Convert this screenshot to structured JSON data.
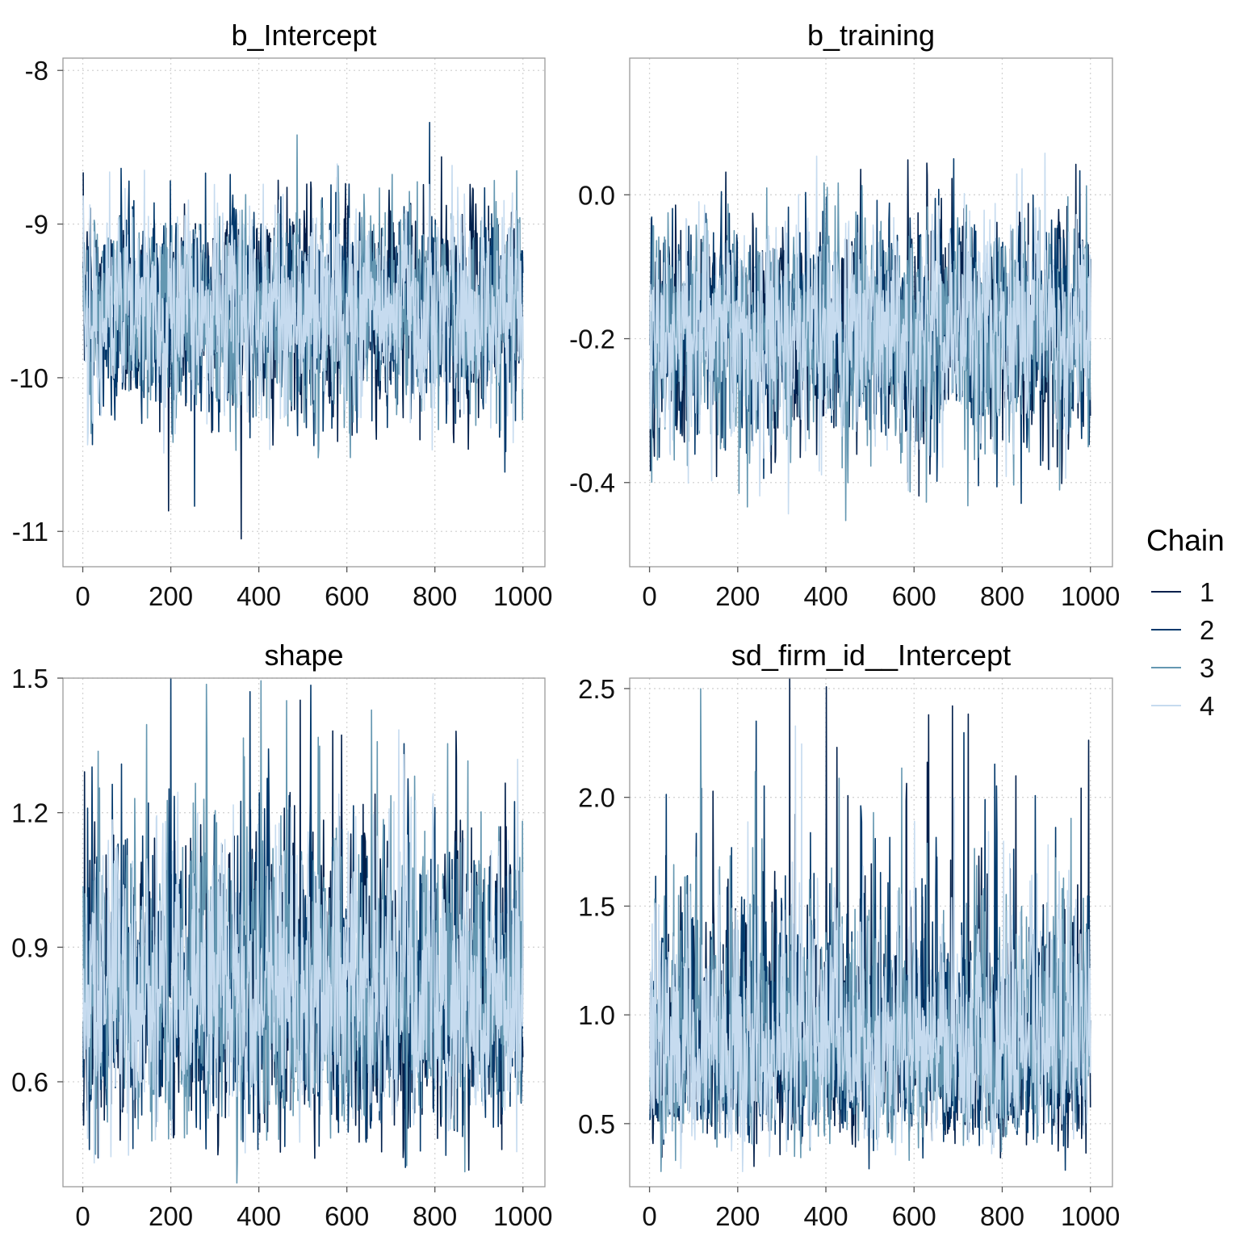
{
  "chart_data": {
    "type": "line",
    "description_kind": "mcmc-trace",
    "iterations": 1000,
    "legend": {
      "title": "Chain",
      "placement": "right",
      "chains": [
        "1",
        "2",
        "3",
        "4"
      ]
    },
    "chain_colors": [
      "#011f4b",
      "#03396c",
      "#6497b1",
      "#c6dbef"
    ],
    "xticks": [
      0,
      200,
      400,
      600,
      800,
      1000
    ],
    "xtick_labels": [
      "0",
      "200",
      "400",
      "600",
      "800",
      "1000"
    ],
    "xlim": [
      -45,
      1050
    ],
    "panels": [
      {
        "title": "b_Intercept",
        "ylim": [
          -11.23,
          -7.92
        ],
        "yticks": [
          -11,
          -10,
          -9,
          -8
        ],
        "ytick_labels": [
          "-11",
          "-10",
          "-9",
          "-8"
        ],
        "dist": "normal",
        "mean": -9.55,
        "sd": 0.33
      },
      {
        "title": "b_training",
        "ylim": [
          -0.517,
          0.19
        ],
        "yticks": [
          -0.4,
          -0.2,
          0.0
        ],
        "ytick_labels": [
          "-0.4",
          "-0.2",
          "0.0"
        ],
        "dist": "normal",
        "mean": -0.19,
        "sd": 0.075
      },
      {
        "title": "shape",
        "ylim": [
          0.366,
          1.5
        ],
        "yticks": [
          0.6,
          0.9,
          1.2,
          1.5
        ],
        "ytick_labels": [
          "0.6",
          "0.9",
          "1.2",
          "1.5"
        ],
        "dist": "lognormal",
        "mean": 0.81,
        "sd": 0.17
      },
      {
        "title": "sd_firm_id__Intercept",
        "ylim": [
          0.21,
          2.548
        ],
        "yticks": [
          0.5,
          1.0,
          1.5,
          2.0,
          2.5
        ],
        "ytick_labels": [
          "0.5",
          "1.0",
          "1.5",
          "2.0",
          "2.5"
        ],
        "dist": "lognormal",
        "mean": 0.9,
        "sd": 0.3
      }
    ]
  }
}
